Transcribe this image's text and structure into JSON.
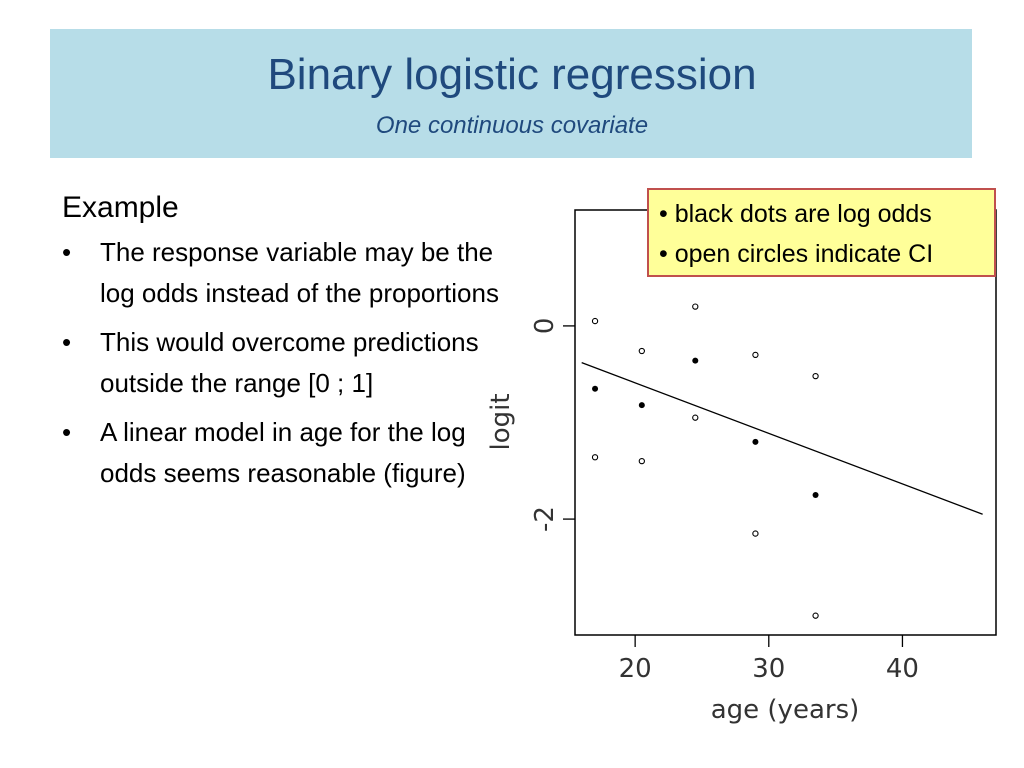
{
  "header": {
    "title": "Binary logistic regression",
    "subtitle": "One continuous covariate"
  },
  "content": {
    "heading": "Example",
    "bullet_glyph": "•",
    "bullets": [
      "The response variable may be the log odds instead of the proportions",
      "This would overcome predictions outside the range [0 ; 1]",
      "A linear model in age for the log odds seems reasonable (figure)"
    ]
  },
  "legend": {
    "lines": [
      "• black dots are log odds",
      "• open circles indicate CI"
    ]
  },
  "chart_data": {
    "type": "scatter",
    "xlabel": "age (years)",
    "ylabel": "logit",
    "xlim": [
      15.5,
      47
    ],
    "ylim": [
      -3.2,
      1.2
    ],
    "xticks": [
      20,
      30,
      40
    ],
    "yticks": [
      0,
      -2
    ],
    "grid": false,
    "series": [
      {
        "name": "black dots are log odds",
        "marker": "filled",
        "x": [
          17,
          20.5,
          24.5,
          29,
          33.5
        ],
        "y": [
          -0.65,
          -0.82,
          -0.36,
          -1.2,
          -1.75
        ]
      },
      {
        "name": "open circles indicate CI",
        "marker": "open",
        "x": [
          17,
          17,
          20.5,
          20.5,
          24.5,
          24.5,
          29,
          29,
          33.5,
          33.5
        ],
        "y": [
          0.05,
          -1.36,
          -0.26,
          -1.4,
          0.2,
          -0.95,
          -0.3,
          -2.15,
          -0.52,
          -3.0
        ]
      }
    ],
    "fit_line": {
      "x": [
        16,
        46
      ],
      "y": [
        -0.38,
        -1.95
      ]
    }
  }
}
